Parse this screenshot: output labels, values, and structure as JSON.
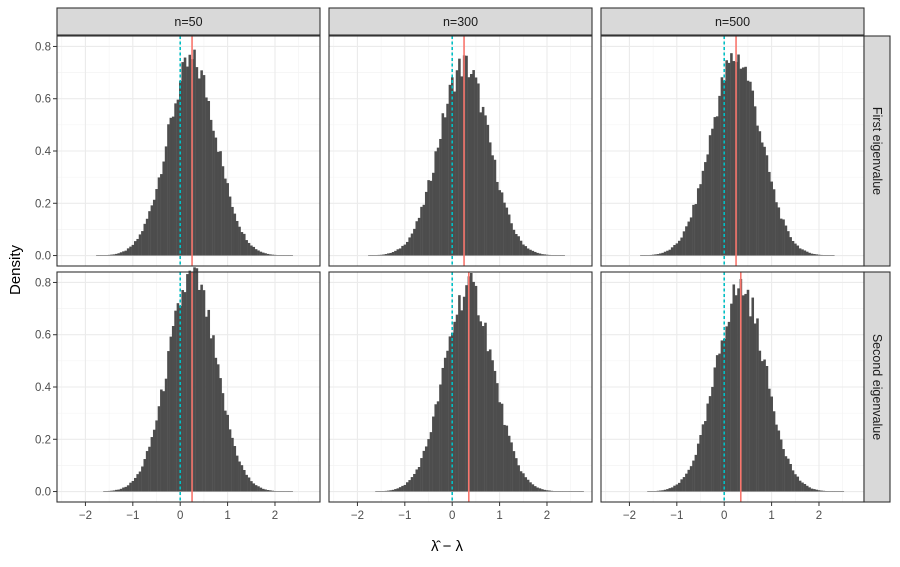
{
  "chart_data": {
    "type": "bar",
    "ylabel": "Density",
    "xlabel": "λ̂ − λ",
    "col_strips": [
      "n=50",
      "n=300",
      "n=500"
    ],
    "row_strips": [
      "First eigenvalue",
      "Second eigenvalue"
    ],
    "xlim": [
      -2.6,
      2.95
    ],
    "ylim": [
      -0.04,
      0.84
    ],
    "x_ticks": [
      -2,
      -1,
      0,
      1,
      2
    ],
    "x_tick_labels": [
      "−2",
      "−1",
      "0",
      "1",
      "2"
    ],
    "y_ticks": [
      0.0,
      0.2,
      0.4,
      0.6,
      0.8
    ],
    "y_tick_labels": [
      "0.0",
      "0.2",
      "0.4",
      "0.6",
      "0.8"
    ],
    "bin_width": 0.05,
    "grid": true,
    "bar_color": "#4d4d4d",
    "reference_line": {
      "x": 0,
      "color": "#00bfc4",
      "style": "dotted"
    },
    "mean_line_color": "#f8766d",
    "panels": [
      {
        "row": 0,
        "col": 0,
        "mean": 0.25,
        "sd": 0.52,
        "peak": 0.74,
        "x_min": -1.75,
        "x_max": 2.35
      },
      {
        "row": 0,
        "col": 1,
        "mean": 0.25,
        "sd": 0.53,
        "peak": 0.73,
        "x_min": -1.75,
        "x_max": 2.35
      },
      {
        "row": 0,
        "col": 2,
        "mean": 0.25,
        "sd": 0.53,
        "peak": 0.76,
        "x_min": -1.75,
        "x_max": 2.3
      },
      {
        "row": 1,
        "col": 0,
        "mean": 0.25,
        "sd": 0.51,
        "peak": 0.82,
        "x_min": -1.6,
        "x_max": 2.35
      },
      {
        "row": 1,
        "col": 1,
        "mean": 0.35,
        "sd": 0.52,
        "peak": 0.78,
        "x_min": -1.6,
        "x_max": 2.75
      },
      {
        "row": 1,
        "col": 2,
        "mean": 0.35,
        "sd": 0.52,
        "peak": 0.78,
        "x_min": -1.6,
        "x_max": 2.5
      }
    ]
  }
}
